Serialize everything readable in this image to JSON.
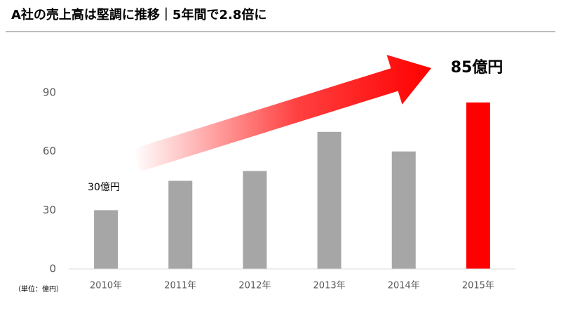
{
  "chart_data": {
    "type": "bar",
    "title": "A社の売上高は堅調に推移｜5年間で2.8倍に",
    "categories": [
      "2010年",
      "2011年",
      "2012年",
      "2013年",
      "2014年",
      "2015年"
    ],
    "values": [
      30,
      45,
      50,
      70,
      60,
      85
    ],
    "colors": [
      "#a6a6a6",
      "#a6a6a6",
      "#a6a6a6",
      "#a6a6a6",
      "#a6a6a6",
      "#ff0000"
    ],
    "ylim": [
      0,
      90
    ],
    "yticks": [
      0,
      30,
      60,
      90
    ],
    "start_label": "30億円",
    "end_label": "85億円",
    "unit_note": "（単位：億円）"
  }
}
